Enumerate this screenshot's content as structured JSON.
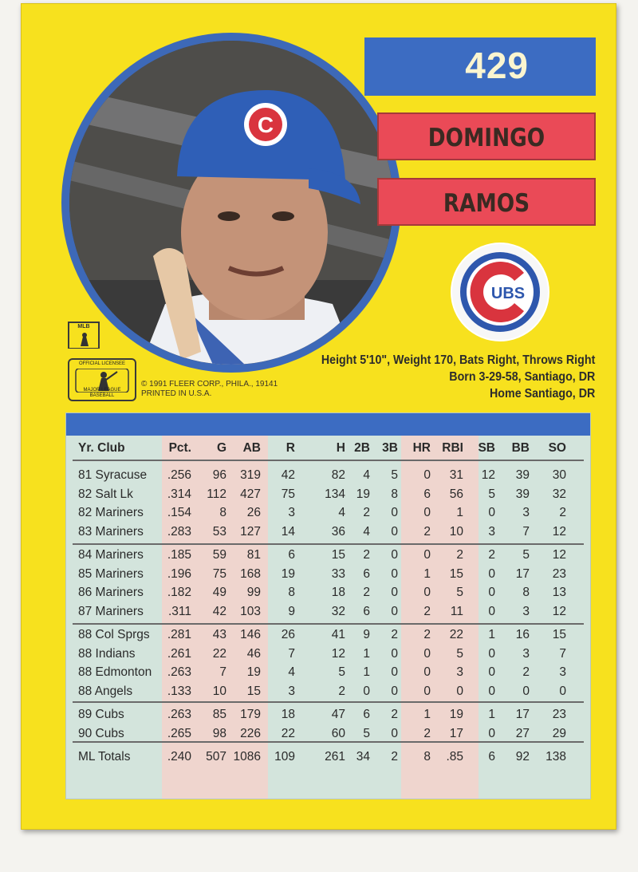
{
  "card": {
    "number": "429",
    "first_name": "DOMINGO",
    "last_name": "RAMOS",
    "team_logo_text": "UBS",
    "helmet_logo": "C",
    "bio_line1": "Height 5'10\", Weight 170, Bats Right, Throws Right",
    "bio_line2": "Born 3-29-58, Santiago, DR",
    "bio_line3": "Home Santiago, DR",
    "copyright_line1": "© 1991 FLEER CORP., PHILA., 19141",
    "copyright_line2": "PRINTED IN U.S.A.",
    "mlb_small_label": "MLB",
    "mlb_big_top": "OFFICIAL LICENSEE",
    "mlb_big_bottom": "MAJOR LEAGUE BASEBALL",
    "colors": {
      "card": "#f7e11e",
      "blue": "#3c6cc2",
      "red": "#ea4a57",
      "stats_bg": "#d3e4dc",
      "pink": "#efd5ce"
    }
  },
  "stats": {
    "headers": [
      "Yr. Club",
      "Pct.",
      "G",
      "AB",
      "R",
      "H",
      "2B",
      "3B",
      "HR",
      "RBI",
      "SB",
      "BB",
      "SO"
    ],
    "rows": [
      [
        "81 Syracuse",
        ".256",
        "96",
        "319",
        "42",
        "82",
        "4",
        "5",
        "0",
        "31",
        "12",
        "39",
        "30"
      ],
      [
        "82 Salt Lk",
        ".314",
        "112",
        "427",
        "75",
        "134",
        "19",
        "8",
        "6",
        "56",
        "5",
        "39",
        "32"
      ],
      [
        "82 Mariners",
        ".154",
        "8",
        "26",
        "3",
        "4",
        "2",
        "0",
        "0",
        "1",
        "0",
        "3",
        "2"
      ],
      [
        "83 Mariners",
        ".283",
        "53",
        "127",
        "14",
        "36",
        "4",
        "0",
        "2",
        "10",
        "3",
        "7",
        "12"
      ],
      [
        "84 Mariners",
        ".185",
        "59",
        "81",
        "6",
        "15",
        "2",
        "0",
        "0",
        "2",
        "2",
        "5",
        "12"
      ],
      [
        "85 Mariners",
        ".196",
        "75",
        "168",
        "19",
        "33",
        "6",
        "0",
        "1",
        "15",
        "0",
        "17",
        "23"
      ],
      [
        "86 Mariners",
        ".182",
        "49",
        "99",
        "8",
        "18",
        "2",
        "0",
        "0",
        "5",
        "0",
        "8",
        "13"
      ],
      [
        "87 Mariners",
        ".311",
        "42",
        "103",
        "9",
        "32",
        "6",
        "0",
        "2",
        "11",
        "0",
        "3",
        "12"
      ],
      [
        "88 Col Sprgs",
        ".281",
        "43",
        "146",
        "26",
        "41",
        "9",
        "2",
        "2",
        "22",
        "1",
        "16",
        "15"
      ],
      [
        "88 Indians",
        ".261",
        "22",
        "46",
        "7",
        "12",
        "1",
        "0",
        "0",
        "5",
        "0",
        "3",
        "7"
      ],
      [
        "88 Edmonton",
        ".263",
        "7",
        "19",
        "4",
        "5",
        "1",
        "0",
        "0",
        "3",
        "0",
        "2",
        "3"
      ],
      [
        "88 Angels",
        ".133",
        "10",
        "15",
        "3",
        "2",
        "0",
        "0",
        "0",
        "0",
        "0",
        "0",
        "0"
      ],
      [
        "89 Cubs",
        ".263",
        "85",
        "179",
        "18",
        "47",
        "6",
        "2",
        "1",
        "19",
        "1",
        "17",
        "23"
      ],
      [
        "90 Cubs",
        ".265",
        "98",
        "226",
        "22",
        "60",
        "5",
        "0",
        "2",
        "17",
        "0",
        "27",
        "29"
      ],
      [
        "ML Totals",
        ".240",
        "507",
        "1086",
        "109",
        "261",
        "34",
        "2",
        "8",
        ".85",
        "6",
        "92",
        "138"
      ]
    ]
  }
}
